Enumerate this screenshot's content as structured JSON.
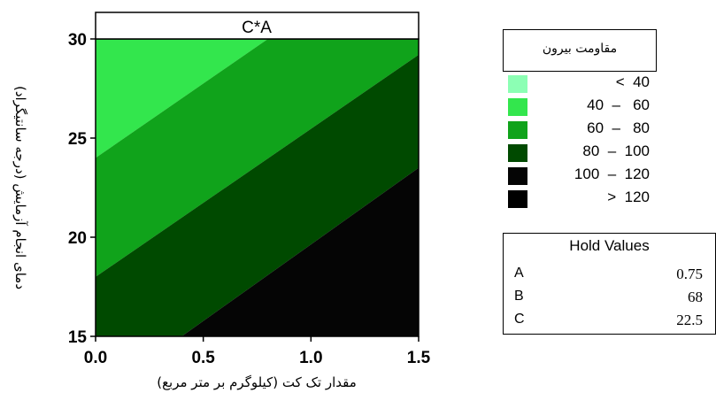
{
  "chart_data": {
    "type": "contour",
    "title": "C*A",
    "xlabel": "مقدار تک کت (کیلوگرم بر متر مربع)",
    "ylabel": "دمای انجام آزمایش (درجه سانتیگراد)",
    "xlim": [
      0,
      1.5
    ],
    "ylim": [
      15,
      30
    ],
    "x_ticks": [
      "0.0",
      "0.5",
      "1.0",
      "1.5"
    ],
    "y_ticks": [
      "15",
      "20",
      "25",
      "30"
    ],
    "contour_levels": [
      40,
      60,
      80,
      100,
      120
    ],
    "boundaries": [
      {
        "name": "40-60/60-80",
        "points": [
          [
            0,
            24.0
          ],
          [
            0.8,
            30.0
          ]
        ]
      },
      {
        "name": "60-80/80-100",
        "points": [
          [
            0,
            18.0
          ],
          [
            1.5,
            29.2
          ]
        ]
      },
      {
        "name": "80-100/100-120",
        "points": [
          [
            0.4,
            15.0
          ],
          [
            1.5,
            23.5
          ]
        ]
      }
    ],
    "hold_values": [
      {
        "name": "A",
        "value": "0.75"
      },
      {
        "name": "B",
        "value": "68"
      },
      {
        "name": "C",
        "value": "22.5"
      }
    ]
  },
  "legend": {
    "title": "مقاومت بیرون",
    "items": [
      {
        "label": "<  40",
        "color": "#8CFFB4"
      },
      {
        "label": "40  –   60",
        "color": "#33E64D"
      },
      {
        "label": "60  –   80",
        "color": "#10A31B"
      },
      {
        "label": "80  –  100",
        "color": "#004A00"
      },
      {
        "label": "100  –  120",
        "color": "#050505"
      },
      {
        "label": ">  120",
        "color": "#000000"
      }
    ]
  },
  "hold": {
    "title": "Hold Values"
  }
}
